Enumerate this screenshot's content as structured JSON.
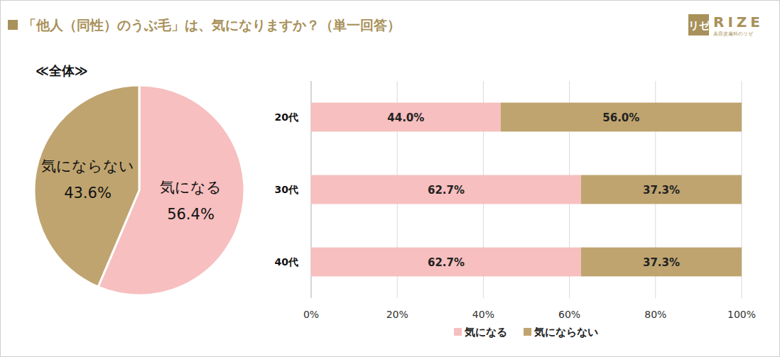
{
  "title": "「他人（同性）のうぶ毛」は、気になりますか？（単一回答）",
  "logo": {
    "mark": "リゼ",
    "name": "RIZE",
    "tagline": "美容皮膚科のリゼ"
  },
  "chart_data": [
    {
      "type": "pie",
      "subtitle": "≪全体≫",
      "categories": [
        "気になる",
        "気にならない"
      ],
      "values": [
        56.4,
        43.6
      ],
      "value_labels": [
        "56.4%",
        "43.6%"
      ],
      "colors": [
        "#f7bfbf",
        "#bfa46f"
      ],
      "data_labels": true
    },
    {
      "type": "bar",
      "orientation": "horizontal",
      "stacked": true,
      "categories": [
        "20代",
        "30代",
        "40代"
      ],
      "series": [
        {
          "name": "気になる",
          "color": "#f7bfbf",
          "values": [
            44.0,
            62.7,
            62.7
          ],
          "value_labels": [
            "44.0%",
            "62.7%",
            "62.7%"
          ]
        },
        {
          "name": "気にならない",
          "color": "#bfa46f",
          "values": [
            56.0,
            37.3,
            37.3
          ],
          "value_labels": [
            "56.0%",
            "37.3%",
            "37.3%"
          ]
        }
      ],
      "xlim": [
        0,
        100
      ],
      "xticks": [
        {
          "value": 0,
          "label": "0%"
        },
        {
          "value": 20,
          "label": "20%"
        },
        {
          "value": 40,
          "label": "40%"
        },
        {
          "value": 60,
          "label": "60%"
        },
        {
          "value": 80,
          "label": "80%"
        },
        {
          "value": 100,
          "label": "100%"
        }
      ],
      "grid": true,
      "legend": "bottom",
      "data_labels": true
    }
  ]
}
